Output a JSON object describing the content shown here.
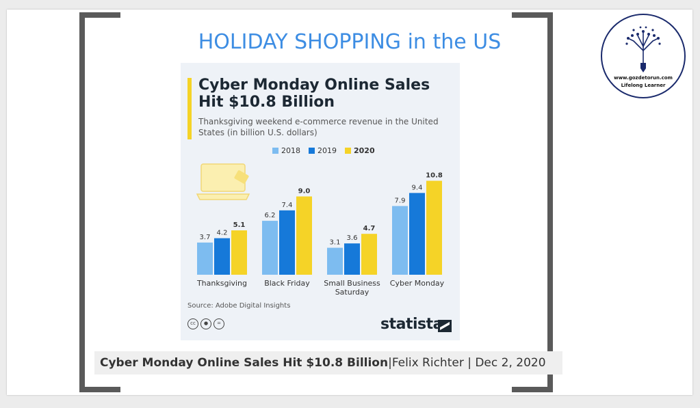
{
  "slide": {
    "title": "HOLIDAY SHOPPING in the US",
    "caption_bold": "Cyber Monday Online Sales Hit $10.8 Billion",
    "caption_rest": " |Felix Richter | Dec 2, 2020"
  },
  "logo": {
    "url": "www.gozdetorun.com",
    "tagline": "Lifelong Learner",
    "icon": "tree-pencil-icon",
    "color": "#1a2a6c"
  },
  "infographic": {
    "title": "Cyber Monday Online Sales Hit $10.8 Billion",
    "subtitle": "Thanksgiving weekend e-commerce revenue in the United States (in billion U.S. dollars)",
    "source": "Source: Adobe Digital Insights",
    "brand": "statista",
    "license_icons": [
      "cc-icon",
      "by-icon",
      "nd-icon"
    ]
  },
  "chart_data": {
    "type": "bar",
    "title": "Cyber Monday Online Sales Hit $10.8 Billion",
    "subtitle": "Thanksgiving weekend e-commerce revenue in the United States (in billion U.S. dollars)",
    "categories": [
      "Thanksgiving",
      "Black Friday",
      "Small Business Saturday",
      "Cyber Monday"
    ],
    "series": [
      {
        "name": "2018",
        "values": [
          3.7,
          6.2,
          3.1,
          7.9
        ],
        "color": "#7dbcf0"
      },
      {
        "name": "2019",
        "values": [
          4.2,
          7.4,
          3.6,
          9.4
        ],
        "color": "#1679d9"
      },
      {
        "name": "2020",
        "values": [
          5.1,
          9.0,
          4.7,
          10.8
        ],
        "color": "#f5d327"
      }
    ],
    "ylim": [
      0,
      11
    ],
    "grid": false,
    "legend": "top",
    "source": "Source: Adobe Digital Insights"
  }
}
